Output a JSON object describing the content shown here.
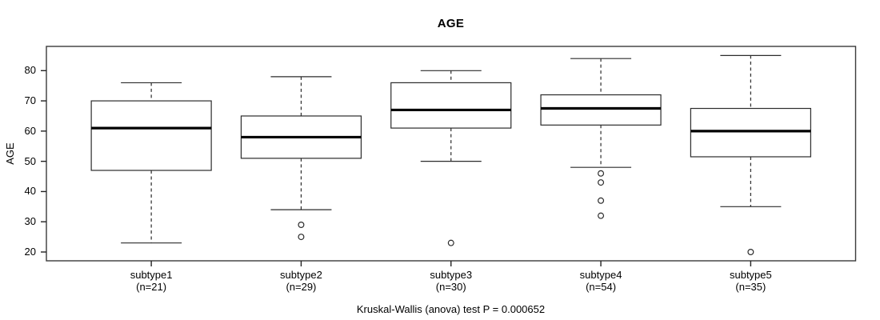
{
  "figure": {
    "title": "AGE",
    "y_axis_label": "AGE",
    "caption": "Kruskal-Wallis (anova) test P = 0.000652"
  },
  "chart_data": {
    "type": "boxplot",
    "title": "AGE",
    "xlabel": "",
    "ylabel": "AGE",
    "ylim": [
      17,
      88
    ],
    "yticks": [
      20,
      30,
      40,
      50,
      60,
      70,
      80
    ],
    "grid": false,
    "legend": "none",
    "frame": true,
    "categories": [
      "subtype1",
      "subtype2",
      "subtype3",
      "subtype4",
      "subtype5"
    ],
    "category_sublabels": [
      "(n=21)",
      "(n=29)",
      "(n=30)",
      "(n=54)",
      "(n=35)"
    ],
    "series": [
      {
        "name": "subtype1",
        "n": 21,
        "whisker_low": 23,
        "q1": 47,
        "median": 61,
        "q3": 70,
        "whisker_high": 76,
        "outliers": []
      },
      {
        "name": "subtype2",
        "n": 29,
        "whisker_low": 34,
        "q1": 51,
        "median": 58,
        "q3": 65,
        "whisker_high": 78,
        "outliers": [
          29,
          25
        ]
      },
      {
        "name": "subtype3",
        "n": 30,
        "whisker_low": 50,
        "q1": 61,
        "median": 67,
        "q3": 76,
        "whisker_high": 80,
        "outliers": [
          23
        ]
      },
      {
        "name": "subtype4",
        "n": 54,
        "whisker_low": 48,
        "q1": 62,
        "median": 67.5,
        "q3": 72,
        "whisker_high": 84,
        "outliers": [
          46,
          43,
          37,
          32
        ]
      },
      {
        "name": "subtype5",
        "n": 35,
        "whisker_low": 35,
        "q1": 51.5,
        "median": 60,
        "q3": 67.5,
        "whisker_high": 85,
        "outliers": [
          20
        ]
      }
    ],
    "annotation": "Kruskal-Wallis (anova) test P = 0.000652",
    "colors": {
      "stroke": "#2b2b2b",
      "median": "#000000",
      "background": "#ffffff"
    }
  }
}
